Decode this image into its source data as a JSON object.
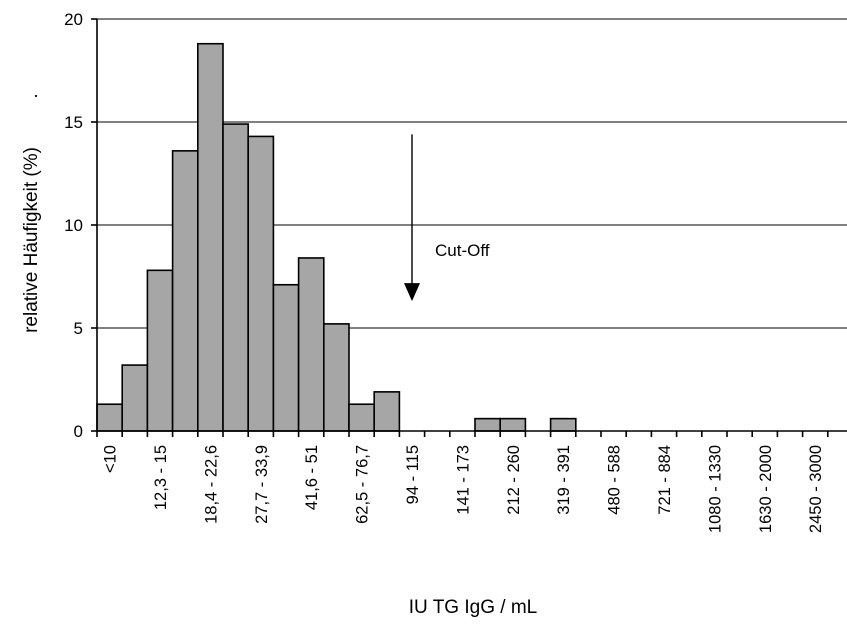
{
  "chart_data": {
    "type": "bar",
    "title": "",
    "xlabel": "IU  TG IgG / mL",
    "ylabel": "relative Häufigkeit (%)",
    "ylabel_suffix": ".",
    "ylim": [
      0,
      20
    ],
    "yticks": [
      0,
      5,
      10,
      15,
      20
    ],
    "grid": true,
    "bar_color": "#a6a6a6",
    "categories": [
      "<10",
      "",
      "12,3 - 15",
      "",
      "18,4 - 22,6",
      "",
      "27,7 - 33,9",
      "",
      "41,6 - 51",
      "",
      "62,5 - 76,7",
      "",
      "94 - 115",
      "",
      "141 - 173",
      "",
      "212 - 260",
      "",
      "319 - 391",
      "",
      "480 - 588",
      "",
      "721 - 884",
      "",
      "1080 - 1330",
      "",
      "1630 - 2000",
      "",
      "2450 - 3000",
      ""
    ],
    "values": [
      1.3,
      3.2,
      7.8,
      13.6,
      18.8,
      14.9,
      14.3,
      7.1,
      8.4,
      5.2,
      1.3,
      1.9,
      0,
      0,
      0,
      0.6,
      0.6,
      0,
      0.6,
      0,
      0,
      0,
      0,
      0,
      0,
      0,
      0,
      0,
      0,
      0
    ],
    "annotations": [
      {
        "text": "Cut-Off",
        "x_index": 12,
        "y_from": 14.4,
        "y_to": 6.4
      }
    ]
  }
}
